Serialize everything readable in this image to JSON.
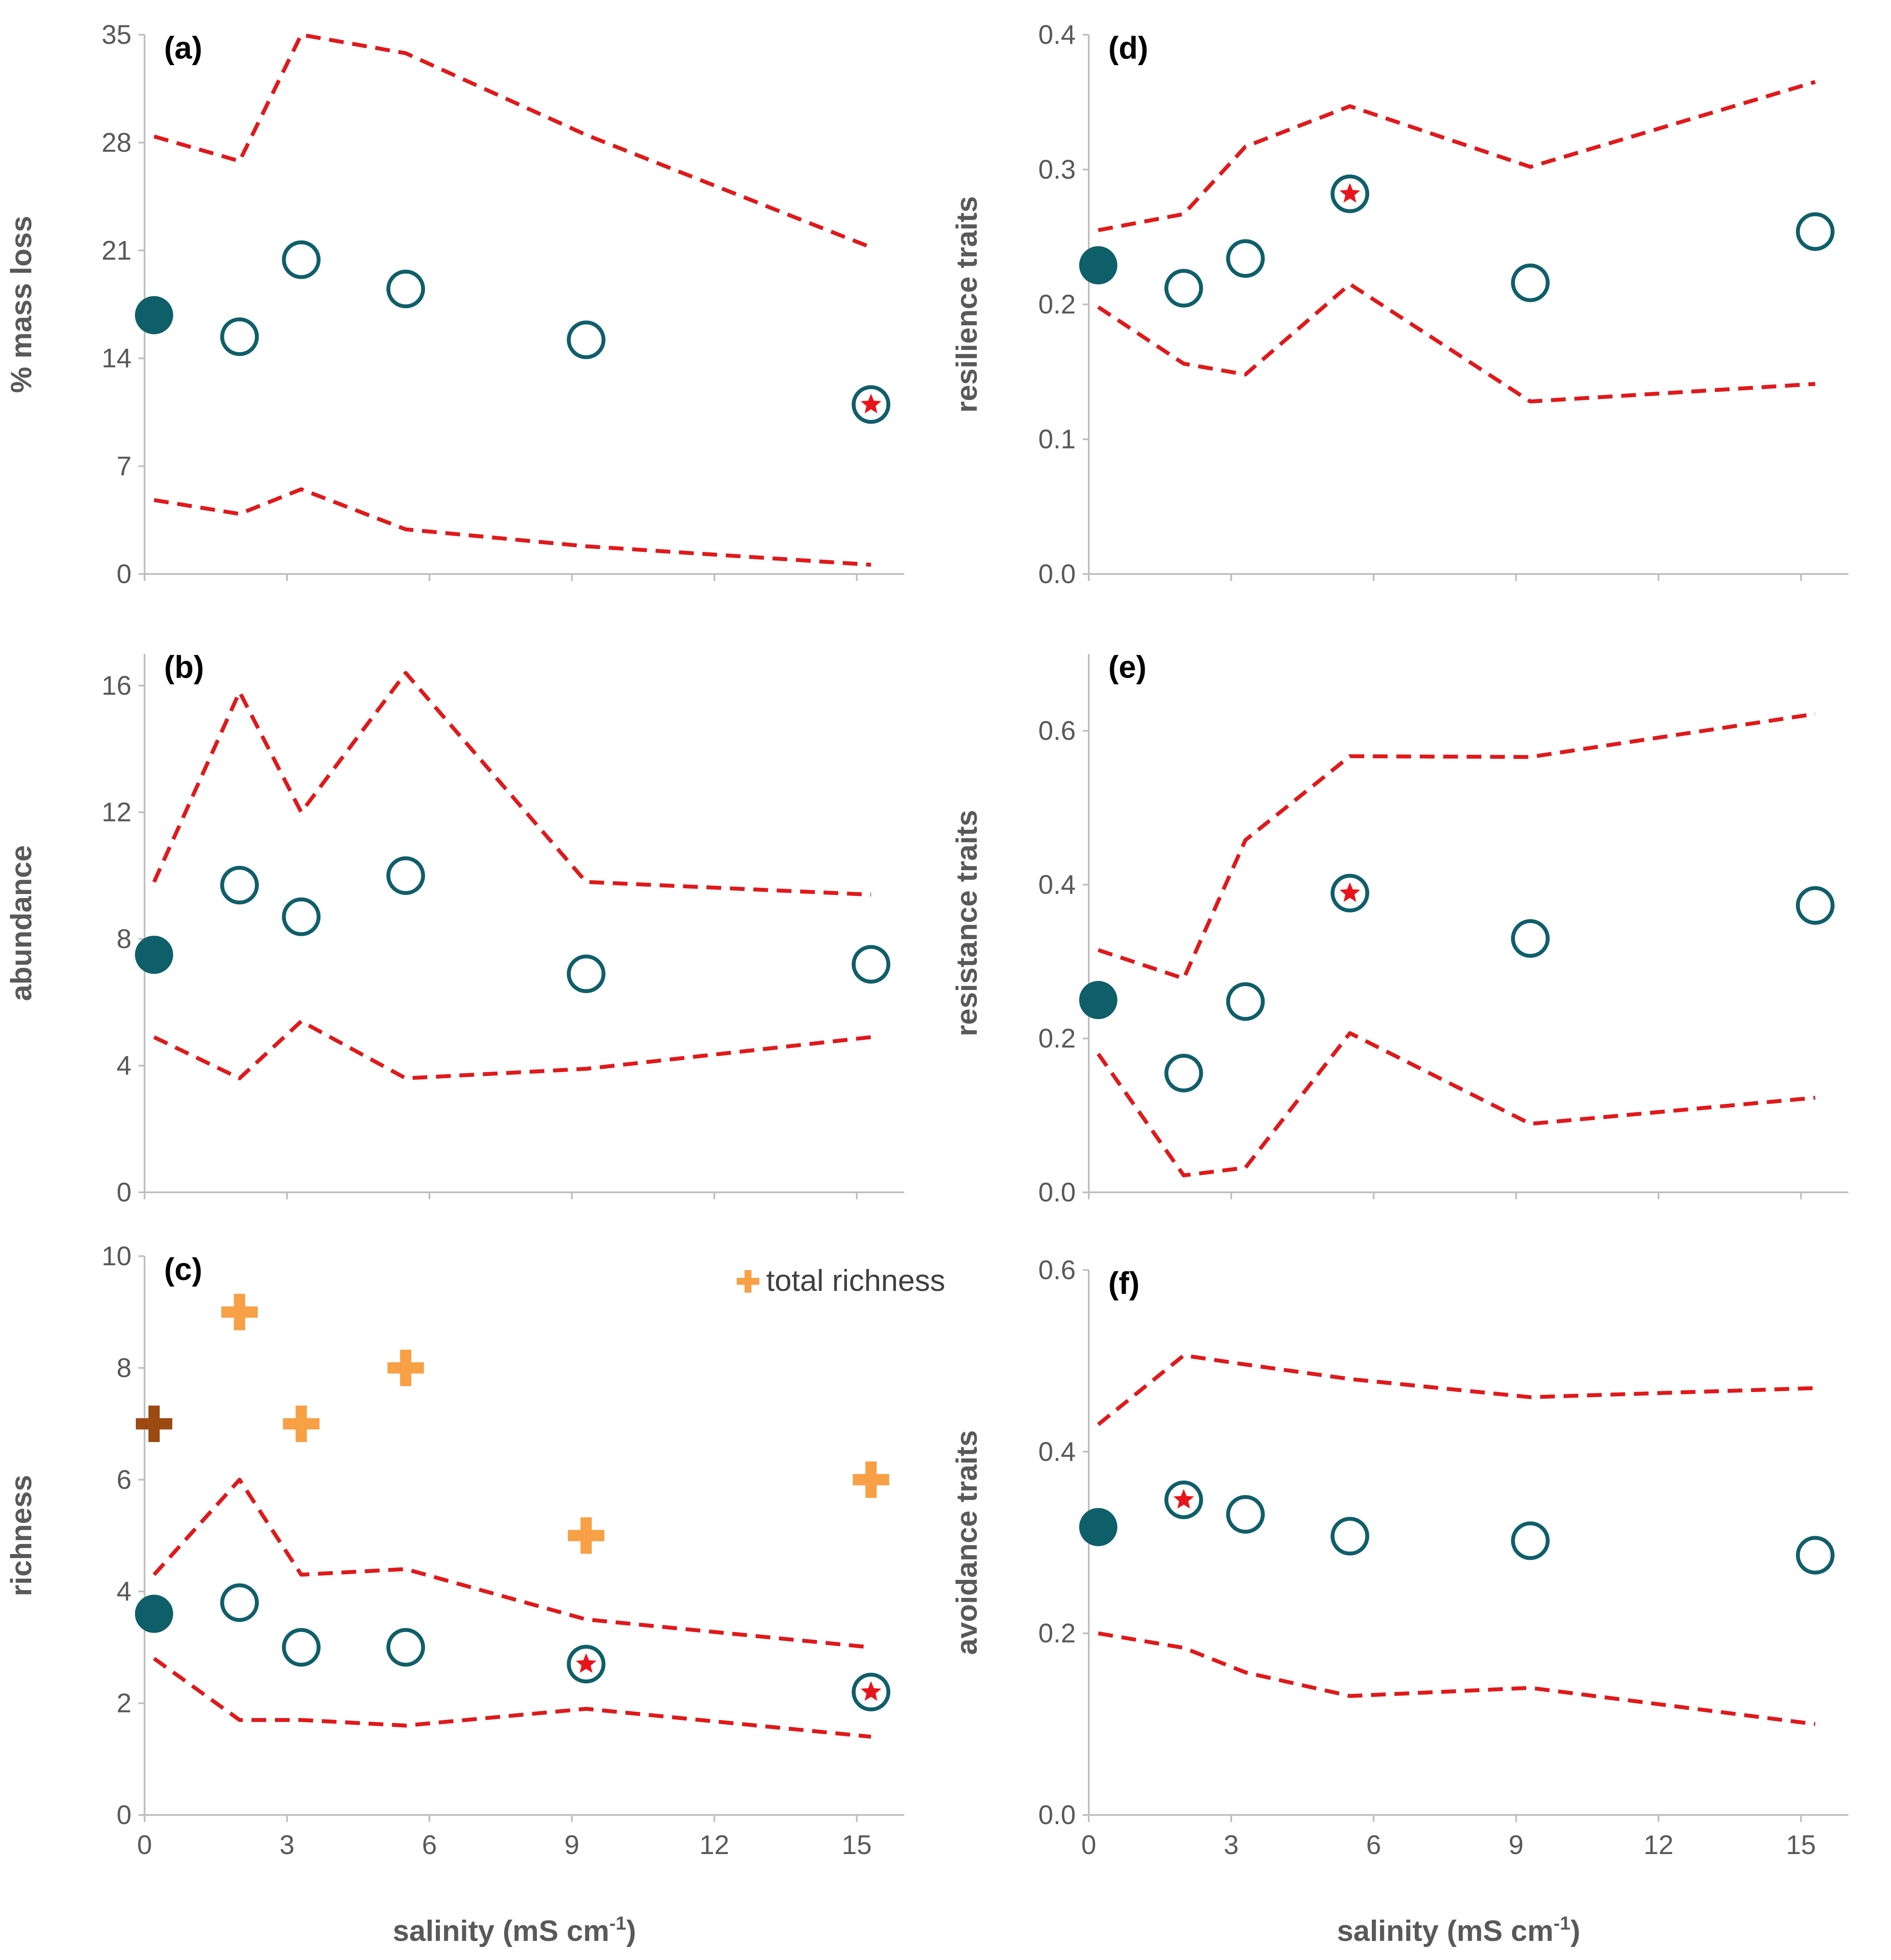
{
  "colors": {
    "observed": "#0F5F6A",
    "envelope": "#E0191B",
    "star": "#E8141B",
    "total_richness": "#F7A045",
    "total_richness_reference": "#9C4A12",
    "axis": "#BFBFBF",
    "text": "#595959"
  },
  "figure": {
    "xlabel_main": "salinity (mS cm",
    "xlabel_sup": "-1",
    "xlabel_close": ")"
  },
  "chart_data": [
    {
      "id": "a",
      "label": "(a)",
      "type": "scatter",
      "ylabel": "% mass loss",
      "xlabel": "salinity (mS cm-1)",
      "xlim": [
        0,
        16
      ],
      "ylim": [
        0,
        35
      ],
      "xticks": [
        "0",
        "3",
        "6",
        "9",
        "12",
        "15"
      ],
      "yticks": [
        "0",
        "7",
        "14",
        "21",
        "28",
        "35"
      ],
      "show_xtick_labels": false,
      "upper": {
        "x": [
          0.2,
          2.0,
          3.3,
          5.5,
          9.3,
          15.3
        ],
        "y": [
          28.4,
          26.8,
          35.0,
          33.8,
          28.5,
          21.2
        ]
      },
      "lower": {
        "x": [
          0.2,
          2.0,
          3.3,
          5.5,
          9.3,
          15.3
        ],
        "y": [
          4.8,
          3.9,
          5.5,
          2.9,
          1.8,
          0.6
        ]
      },
      "points": [
        {
          "x": 0.2,
          "y": 16.8,
          "style": "filled"
        },
        {
          "x": 2.0,
          "y": 15.4,
          "style": "open"
        },
        {
          "x": 3.3,
          "y": 20.4,
          "style": "open"
        },
        {
          "x": 5.5,
          "y": 18.5,
          "style": "open"
        },
        {
          "x": 9.3,
          "y": 15.2,
          "style": "open"
        },
        {
          "x": 15.3,
          "y": 11.0,
          "style": "star"
        }
      ]
    },
    {
      "id": "b",
      "label": "(b)",
      "type": "scatter",
      "ylabel": "abundance",
      "xlabel": "salinity (mS cm-1)",
      "xlim": [
        0,
        16
      ],
      "ylim": [
        0,
        17
      ],
      "xticks": [
        "0",
        "3",
        "6",
        "9",
        "12",
        "15"
      ],
      "yticks": [
        "0",
        "4",
        "8",
        "12",
        "16"
      ],
      "show_xtick_labels": false,
      "upper": {
        "x": [
          0.2,
          2.0,
          3.3,
          5.5,
          9.3,
          15.3
        ],
        "y": [
          9.8,
          15.8,
          12.0,
          16.4,
          9.8,
          9.4
        ]
      },
      "lower": {
        "x": [
          0.2,
          2.0,
          3.3,
          5.5,
          9.3,
          15.3
        ],
        "y": [
          4.9,
          3.6,
          5.4,
          3.6,
          3.9,
          4.9
        ]
      },
      "points": [
        {
          "x": 0.2,
          "y": 7.5,
          "style": "filled"
        },
        {
          "x": 2.0,
          "y": 9.7,
          "style": "open"
        },
        {
          "x": 3.3,
          "y": 8.7,
          "style": "open"
        },
        {
          "x": 5.5,
          "y": 10.0,
          "style": "open"
        },
        {
          "x": 9.3,
          "y": 6.9,
          "style": "open"
        },
        {
          "x": 15.3,
          "y": 7.2,
          "style": "open"
        }
      ]
    },
    {
      "id": "c",
      "label": "(c)",
      "type": "scatter",
      "ylabel": "richness",
      "xlabel": "salinity (mS cm-1)",
      "xlim": [
        0,
        16
      ],
      "ylim": [
        0,
        10
      ],
      "xticks": [
        "0",
        "3",
        "6",
        "9",
        "12",
        "15"
      ],
      "yticks": [
        "0",
        "2",
        "4",
        "6",
        "8",
        "10"
      ],
      "show_xtick_labels": true,
      "legend": {
        "label": "total richness",
        "placement": "top-right"
      },
      "upper": {
        "x": [
          0.2,
          2.0,
          3.3,
          5.5,
          9.3,
          15.3
        ],
        "y": [
          4.3,
          6.0,
          4.3,
          4.4,
          3.5,
          3.0
        ]
      },
      "lower": {
        "x": [
          0.2,
          2.0,
          3.3,
          5.5,
          9.3,
          15.3
        ],
        "y": [
          2.8,
          1.7,
          1.7,
          1.6,
          1.9,
          1.4
        ]
      },
      "points": [
        {
          "x": 0.2,
          "y": 3.6,
          "style": "filled"
        },
        {
          "x": 2.0,
          "y": 3.8,
          "style": "open"
        },
        {
          "x": 3.3,
          "y": 3.0,
          "style": "open"
        },
        {
          "x": 5.5,
          "y": 3.0,
          "style": "open"
        },
        {
          "x": 9.3,
          "y": 2.7,
          "style": "star"
        },
        {
          "x": 15.3,
          "y": 2.2,
          "style": "star"
        }
      ],
      "total_richness": [
        {
          "x": 0.2,
          "y": 7,
          "reference": true
        },
        {
          "x": 2.0,
          "y": 9,
          "reference": false
        },
        {
          "x": 3.3,
          "y": 7,
          "reference": false
        },
        {
          "x": 5.5,
          "y": 8,
          "reference": false
        },
        {
          "x": 9.3,
          "y": 5,
          "reference": false
        },
        {
          "x": 15.3,
          "y": 6,
          "reference": false
        }
      ]
    },
    {
      "id": "d",
      "label": "(d)",
      "type": "scatter",
      "ylabel": "resilience traits",
      "xlabel": "salinity (mS cm-1)",
      "xlim": [
        0,
        16
      ],
      "ylim": [
        0,
        0.4
      ],
      "xticks": [
        "0",
        "3",
        "6",
        "9",
        "12",
        "15"
      ],
      "yticks": [
        "0.0",
        "0.1",
        "0.2",
        "0.3",
        "0.4"
      ],
      "show_xtick_labels": false,
      "upper": {
        "x": [
          0.2,
          2.0,
          3.3,
          5.5,
          9.3,
          15.3
        ],
        "y": [
          0.255,
          0.267,
          0.317,
          0.347,
          0.302,
          0.365
        ]
      },
      "lower": {
        "x": [
          0.2,
          2.0,
          3.3,
          5.5,
          9.3,
          15.3
        ],
        "y": [
          0.198,
          0.156,
          0.148,
          0.215,
          0.128,
          0.141
        ]
      },
      "points": [
        {
          "x": 0.2,
          "y": 0.229,
          "style": "filled"
        },
        {
          "x": 2.0,
          "y": 0.212,
          "style": "open"
        },
        {
          "x": 3.3,
          "y": 0.234,
          "style": "open"
        },
        {
          "x": 5.5,
          "y": 0.282,
          "style": "star"
        },
        {
          "x": 9.3,
          "y": 0.216,
          "style": "open"
        },
        {
          "x": 15.3,
          "y": 0.254,
          "style": "open"
        }
      ]
    },
    {
      "id": "e",
      "label": "(e)",
      "type": "scatter",
      "ylabel": "resistance traits",
      "xlabel": "salinity (mS cm-1)",
      "xlim": [
        0,
        16
      ],
      "ylim": [
        0,
        0.7
      ],
      "xticks": [
        "0",
        "3",
        "6",
        "9",
        "12",
        "15"
      ],
      "yticks": [
        "0.0",
        "0.2",
        "0.4",
        "0.6"
      ],
      "show_xtick_labels": false,
      "upper": {
        "x": [
          0.2,
          2.0,
          3.3,
          5.5,
          9.3,
          15.3
        ],
        "y": [
          0.315,
          0.278,
          0.458,
          0.567,
          0.566,
          0.622
        ]
      },
      "lower": {
        "x": [
          0.2,
          2.0,
          3.3,
          5.5,
          9.3,
          15.3
        ],
        "y": [
          0.18,
          0.022,
          0.032,
          0.207,
          0.089,
          0.123
        ]
      },
      "points": [
        {
          "x": 0.2,
          "y": 0.25,
          "style": "filled"
        },
        {
          "x": 2.0,
          "y": 0.155,
          "style": "open"
        },
        {
          "x": 3.3,
          "y": 0.248,
          "style": "open"
        },
        {
          "x": 5.5,
          "y": 0.389,
          "style": "star"
        },
        {
          "x": 9.3,
          "y": 0.33,
          "style": "open"
        },
        {
          "x": 15.3,
          "y": 0.373,
          "style": "open"
        }
      ]
    },
    {
      "id": "f",
      "label": "(f)",
      "type": "scatter",
      "ylabel": "avoidance traits",
      "xlabel": "salinity (mS cm-1)",
      "xlim": [
        0,
        16
      ],
      "ylim": [
        0,
        0.6
      ],
      "xticks": [
        "0",
        "3",
        "6",
        "9",
        "12",
        "15"
      ],
      "yticks": [
        "0.0",
        "0.2",
        "0.4",
        "0.6"
      ],
      "show_xtick_labels": true,
      "upper": {
        "x": [
          0.2,
          2.0,
          3.3,
          5.5,
          9.3,
          15.3
        ],
        "y": [
          0.43,
          0.506,
          0.496,
          0.48,
          0.46,
          0.47
        ]
      },
      "lower": {
        "x": [
          0.2,
          2.0,
          3.3,
          5.5,
          9.3,
          15.3
        ],
        "y": [
          0.2,
          0.184,
          0.157,
          0.131,
          0.14,
          0.1
        ]
      },
      "points": [
        {
          "x": 0.2,
          "y": 0.317,
          "style": "filled"
        },
        {
          "x": 2.0,
          "y": 0.347,
          "style": "star"
        },
        {
          "x": 3.3,
          "y": 0.331,
          "style": "open"
        },
        {
          "x": 5.5,
          "y": 0.307,
          "style": "open"
        },
        {
          "x": 9.3,
          "y": 0.302,
          "style": "open"
        },
        {
          "x": 15.3,
          "y": 0.286,
          "style": "open"
        }
      ]
    }
  ]
}
